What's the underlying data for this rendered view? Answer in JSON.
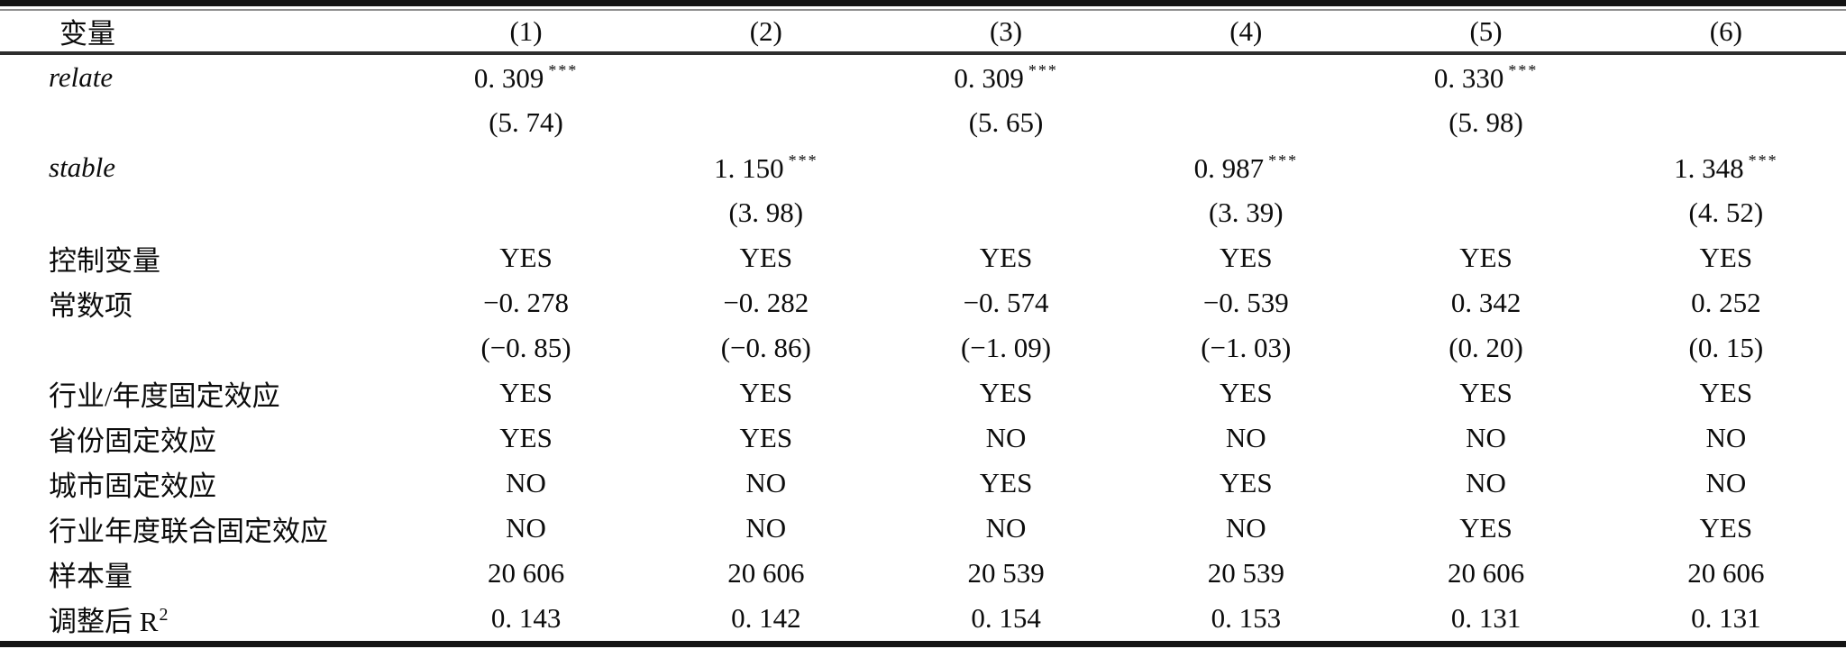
{
  "meta": {
    "background_color": "#ffffff",
    "ink_color": "#0c0c0c",
    "rule_color": "#141414",
    "language": "zh-CN",
    "content_type": "regression-results-table"
  },
  "header": {
    "variable": "变量",
    "columns": [
      "(1)",
      "(2)",
      "(3)",
      "(4)",
      "(5)",
      "(6)"
    ]
  },
  "body": [
    {
      "label": "relate",
      "cells": [
        "0. 309",
        "",
        "0. 309",
        "",
        "0. 330",
        ""
      ],
      "stars": [
        "***",
        "",
        "***",
        "",
        "***",
        ""
      ]
    },
    {
      "label": "",
      "cells": [
        "(5. 74)",
        "",
        "(5. 65)",
        "",
        "(5. 98)",
        ""
      ]
    },
    {
      "label": "stable",
      "cells": [
        "",
        "1. 150",
        "",
        "0. 987",
        "",
        "1. 348"
      ],
      "stars": [
        "",
        "***",
        "",
        "***",
        "",
        "***"
      ]
    },
    {
      "label": "",
      "cells": [
        "",
        "(3. 98)",
        "",
        "(3. 39)",
        "",
        "(4. 52)"
      ]
    },
    {
      "label": "控制变量",
      "cells": [
        "YES",
        "YES",
        "YES",
        "YES",
        "YES",
        "YES"
      ]
    },
    {
      "label": "常数项",
      "cells": [
        "−0. 278",
        "−0. 282",
        "−0. 574",
        "−0. 539",
        "0. 342",
        "0. 252"
      ]
    },
    {
      "label": "",
      "cells": [
        "(−0. 85)",
        "(−0. 86)",
        "(−1. 09)",
        "(−1. 03)",
        "(0. 20)",
        "(0. 15)"
      ]
    },
    {
      "label": "行业/年度固定效应",
      "cells": [
        "YES",
        "YES",
        "YES",
        "YES",
        "YES",
        "YES"
      ]
    },
    {
      "label": "省份固定效应",
      "cells": [
        "YES",
        "YES",
        "NO",
        "NO",
        "NO",
        "NO"
      ]
    },
    {
      "label": "城市固定效应",
      "cells": [
        "NO",
        "NO",
        "YES",
        "YES",
        "NO",
        "NO"
      ]
    },
    {
      "label": "行业年度联合固定效应",
      "cells": [
        "NO",
        "NO",
        "NO",
        "NO",
        "YES",
        "YES"
      ]
    },
    {
      "label": "样本量",
      "cells": [
        "20 606",
        "20 606",
        "20 539",
        "20 539",
        "20 606",
        "20 606"
      ]
    },
    {
      "label": "调整后 R",
      "label_sup": "2",
      "cells": [
        "0. 143",
        "0. 142",
        "0. 154",
        "0. 153",
        "0. 131",
        "0. 131"
      ]
    }
  ]
}
